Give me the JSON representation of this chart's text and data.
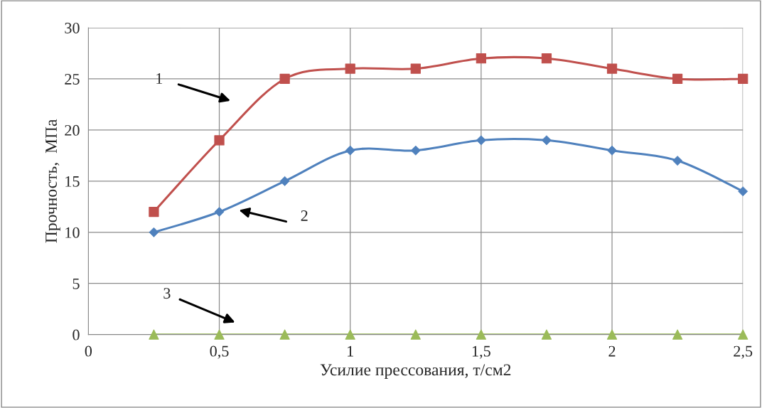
{
  "chart_data": {
    "type": "line",
    "xlabel": "Усилие прессования, т/см2",
    "ylabel": "Прочность,  МПа",
    "x": [
      0.25,
      0.5,
      0.75,
      1,
      1.25,
      1.5,
      1.75,
      2,
      2.25,
      2.5
    ],
    "series": [
      {
        "color": "#c0504d",
        "marker": "square",
        "values": [
          12,
          19,
          25,
          26,
          26,
          27,
          27,
          26,
          25,
          25
        ]
      },
      {
        "color": "#4f81bd",
        "marker": "diamond",
        "values": [
          10,
          12,
          15,
          18,
          18,
          19,
          19,
          18,
          17,
          14
        ]
      },
      {
        "color": "#9bbb59",
        "marker": "triangle",
        "values": [
          0,
          0,
          0,
          0,
          0,
          0,
          0,
          0,
          0,
          0
        ]
      }
    ],
    "annotations": [
      "1",
      "2",
      "3"
    ],
    "xlim": [
      0,
      2.5
    ],
    "xticks": [
      0,
      {
        "value": 0.5,
        "label": "0,5"
      },
      1,
      {
        "value": 1.5,
        "label": "1,5"
      },
      2,
      {
        "value": 2.5,
        "label": "2,5"
      }
    ],
    "ylim": [
      0,
      30
    ],
    "yticks": [
      0,
      5,
      10,
      15,
      20,
      25,
      30
    ],
    "grid": true,
    "line_style": "solid",
    "legend": false
  }
}
